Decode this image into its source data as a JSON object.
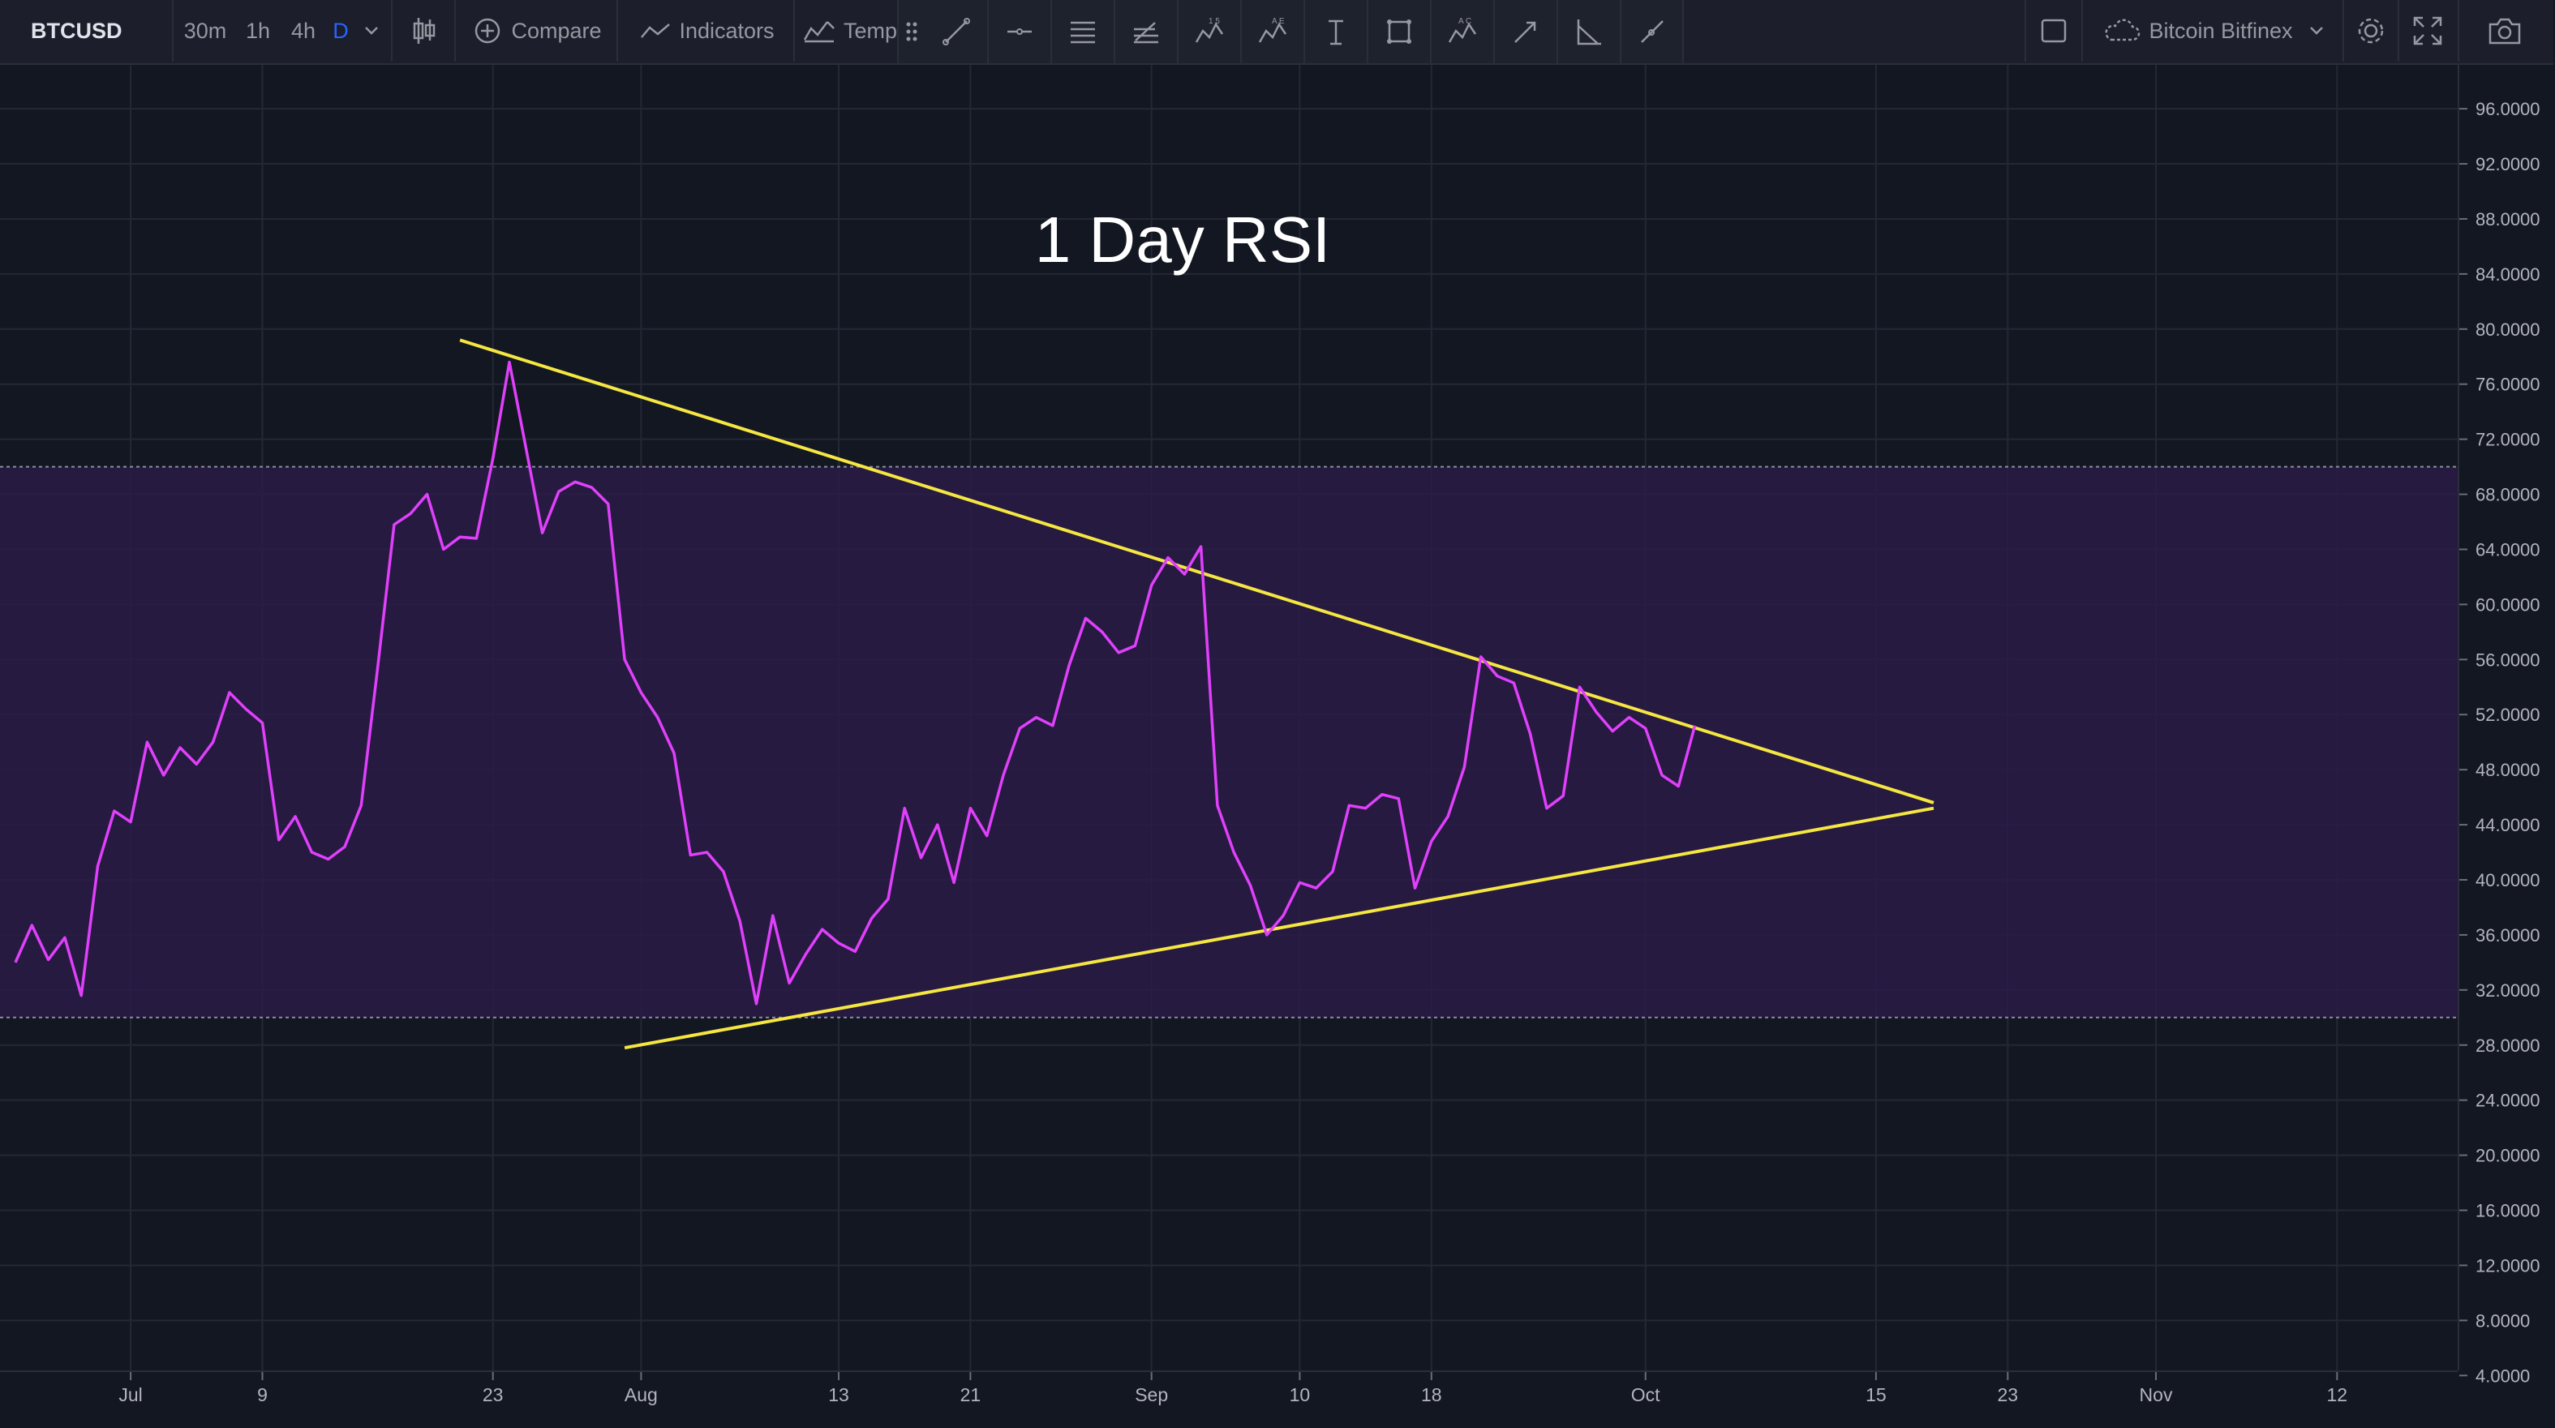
{
  "toolbar": {
    "symbol": "BTCUSD",
    "timeframes": [
      "30m",
      "1h",
      "4h",
      "D"
    ],
    "compare_label": "Compare",
    "indicators_label": "Indicators",
    "templates_label": "Temp",
    "exchange_label": "Bitcoin Bitfinex"
  },
  "drawing_tools": [
    "trend-line-icon",
    "horizontal-ray-icon",
    "parallel-lines-icon",
    "fib-retracement-icon",
    "pattern-15-icon",
    "pattern-ae-icon",
    "text-cursor-icon",
    "rectangle-icon",
    "pattern-ac-icon",
    "arrow-icon",
    "angle-icon",
    "path-icon"
  ],
  "colors": {
    "background": "#131722",
    "rsi_line": "#e040fb",
    "trendline": "#f5e642",
    "band": "#2a1b46",
    "grid": "#242836",
    "active_timeframe": "#2962ff"
  },
  "chart_data": {
    "type": "line",
    "title": "1 Day RSI",
    "ylim": [
      0,
      98
    ],
    "yticks": [
      "96.0000",
      "92.0000",
      "88.0000",
      "84.0000",
      "80.0000",
      "76.0000",
      "72.0000",
      "68.0000",
      "64.0000",
      "60.0000",
      "56.0000",
      "52.0000",
      "48.0000",
      "44.0000",
      "40.0000",
      "36.0000",
      "32.0000",
      "28.0000",
      "24.0000",
      "20.0000",
      "16.0000",
      "12.0000",
      "8.0000",
      "4.0000"
    ],
    "xticks": [
      {
        "label": "Jul",
        "x": 7
      },
      {
        "label": "9",
        "x": 15
      },
      {
        "label": "23",
        "x": 29
      },
      {
        "label": "Aug",
        "x": 38
      },
      {
        "label": "13",
        "x": 50
      },
      {
        "label": "21",
        "x": 58
      },
      {
        "label": "Sep",
        "x": 69
      },
      {
        "label": "10",
        "x": 78
      },
      {
        "label": "18",
        "x": 86
      },
      {
        "label": "Oct",
        "x": 99
      },
      {
        "label": "15",
        "x": 113
      },
      {
        "label": "23",
        "x": 121
      },
      {
        "label": "Nov",
        "x": 130
      },
      {
        "label": "12",
        "x": 141
      }
    ],
    "bands": {
      "upper": 70,
      "lower": 30
    },
    "series": [
      {
        "values": [
          34,
          36.7,
          34.2,
          35.8,
          31.6,
          41,
          45,
          44.2,
          50,
          47.6,
          49.6,
          48.4,
          50,
          53.6,
          52.4,
          51.4,
          42.9,
          44.6,
          42,
          41.5,
          42.4,
          45.4,
          55.4,
          65.8,
          66.6,
          68,
          64,
          64.9,
          64.8,
          70.6,
          77.6,
          71.4,
          65.2,
          68.2,
          68.9,
          68.5,
          67.3,
          56,
          53.6,
          51.8,
          49.2,
          41.8,
          42,
          40.6,
          37,
          31,
          37.4,
          32.5,
          34.6,
          36.4,
          35.4,
          34.8,
          37.2,
          38.6,
          45.2,
          41.6,
          44,
          39.8,
          45.2,
          43.2,
          47.6,
          51,
          51.8,
          51.2,
          55.6,
          59,
          58,
          56.5,
          57,
          61.4,
          63.4,
          62.2,
          64.2,
          45.4,
          42,
          39.6,
          36,
          37.4,
          39.8,
          39.4,
          40.6,
          45.4,
          45.2,
          46.2,
          45.9,
          39.4,
          42.8,
          44.6,
          48.2,
          56.2,
          54.8,
          54.3,
          50.6,
          45.2,
          46.1,
          54,
          52.2,
          50.8,
          51.8,
          51,
          47.6,
          46.8,
          51.2
        ]
      }
    ],
    "trendlines": [
      {
        "points": [
          [
            27,
            79.2
          ],
          [
            116.5,
            45.6
          ]
        ]
      },
      {
        "points": [
          [
            37,
            27.8
          ],
          [
            116.5,
            45.2
          ]
        ]
      }
    ],
    "xlim": [
      0,
      144
    ]
  }
}
